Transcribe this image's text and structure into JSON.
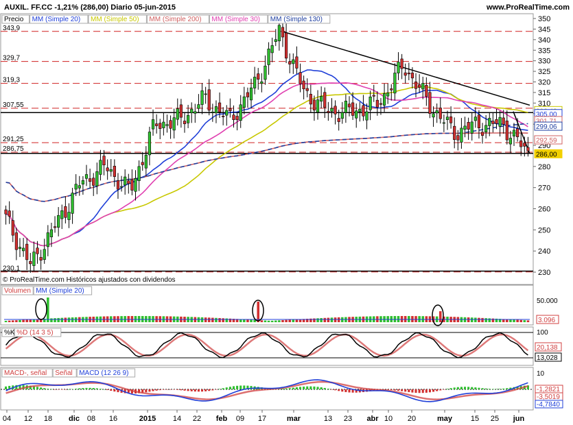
{
  "header": {
    "title": "AUXIL. FF.CC   -1,21% (286,00)   Diario   05-jun-2015",
    "brand": "www.ProRealTime.com"
  },
  "price_panel": {
    "legend": [
      {
        "label": "Precio",
        "color": "#000000"
      },
      {
        "label": "MM (Simple 20)",
        "color": "#1f3fd8"
      },
      {
        "label": "MM (Simple 50)",
        "color": "#c8c800"
      },
      {
        "label": "MM (Simple 200)",
        "color": "#d06060"
      },
      {
        "label": "MM (Simple 30)",
        "color": "#e040b0"
      },
      {
        "label": "MM (Simple 130)",
        "color": "#1f3fa0"
      }
    ],
    "footer": "© ProRealTime.com Históricos ajustados con dividendos",
    "level_labels": [
      "343,9",
      "329,7",
      "319,3",
      "307,55",
      "291,25",
      "286,75",
      "230,1"
    ],
    "right_badges": [
      {
        "text": "306,43",
        "color": "#c8c800"
      },
      {
        "text": "305,00",
        "color": "#1f3fd8"
      },
      {
        "text": "301,71",
        "color": "#d06060"
      },
      {
        "text": "299,06",
        "color": "#1f3fa0"
      },
      {
        "text": "292,59",
        "color": "#d06060"
      },
      {
        "text": "286,00",
        "color": "#f2d000"
      }
    ]
  },
  "volume_panel": {
    "legend": [
      {
        "label": "Volumen",
        "color": "#d04040"
      },
      {
        "label": "MM (Simple 20)",
        "color": "#1f3fd8"
      }
    ],
    "axis_label": "50.000",
    "value_badge": "3.096"
  },
  "stoch_panel": {
    "legend": [
      {
        "label": "%K",
        "color": "#000000"
      },
      {
        "label": "%D (14 3 5)",
        "color": "#d04040"
      }
    ],
    "axis_label": "100",
    "badges": [
      "20,138",
      "13,028"
    ]
  },
  "macd_panel": {
    "legend": [
      {
        "label": "MACD-, señal",
        "color": "#d04040"
      },
      {
        "label": "Señal",
        "color": "#d04040"
      },
      {
        "label": "MACD (12 26 9)",
        "color": "#1f3fd8"
      }
    ],
    "axis_labels": [
      "10",
      "0"
    ],
    "badges": [
      "-1,2821",
      "-3,5019",
      "-4,7840"
    ]
  },
  "x_axis": [
    "04",
    "12",
    "18",
    "dic",
    "08",
    "16",
    "2015",
    "14",
    "22",
    "feb",
    "09",
    "17",
    "mar",
    "13",
    "23",
    "abr",
    "10",
    "20",
    "may",
    "15",
    "25",
    "jun"
  ],
  "chart_data": {
    "type": "candlestick",
    "ylim": [
      230,
      350
    ],
    "yticks": [
      230,
      240,
      250,
      260,
      270,
      280,
      290,
      300,
      305,
      310,
      315,
      320,
      325,
      330,
      335,
      340,
      345,
      350
    ],
    "approx_close_path": [
      {
        "x": "04",
        "y": 255
      },
      {
        "x": "12",
        "y": 233
      },
      {
        "x": "18",
        "y": 252
      },
      {
        "x": "dic",
        "y": 272
      },
      {
        "x": "08",
        "y": 280
      },
      {
        "x": "16",
        "y": 268
      },
      {
        "x": "2015",
        "y": 300
      },
      {
        "x": "14",
        "y": 302
      },
      {
        "x": "22",
        "y": 312
      },
      {
        "x": "feb",
        "y": 302
      },
      {
        "x": "09",
        "y": 318
      },
      {
        "x": "17",
        "y": 344
      },
      {
        "x": "mar",
        "y": 315
      },
      {
        "x": "13",
        "y": 306
      },
      {
        "x": "23",
        "y": 306
      },
      {
        "x": "abr",
        "y": 310
      },
      {
        "x": "10",
        "y": 328
      },
      {
        "x": "20",
        "y": 310
      },
      {
        "x": "may",
        "y": 296
      },
      {
        "x": "15",
        "y": 300
      },
      {
        "x": "25",
        "y": 300
      },
      {
        "x": "jun",
        "y": 286
      }
    ]
  }
}
